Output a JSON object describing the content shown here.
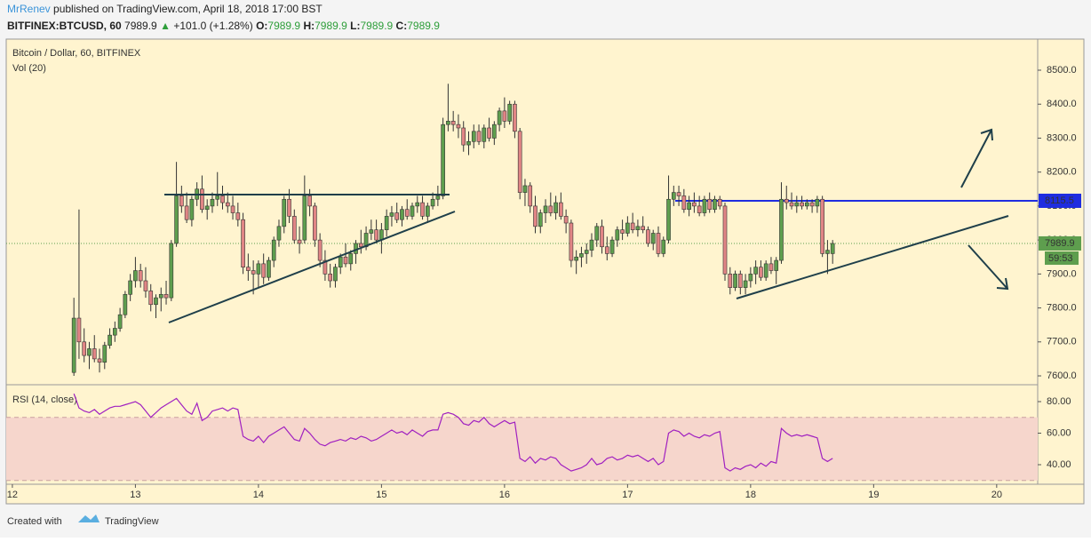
{
  "header": {
    "author": "MrRenev",
    "published": "published on TradingView.com, April 18, 2018 17:00 BST",
    "symbol": "BITFINEX:BTCUSD, 60",
    "last": "7989.9",
    "arrow": "▲",
    "change": "+101.0 (+1.28%)",
    "ohlc_labels": [
      "O:",
      "H:",
      "L:",
      "C:"
    ],
    "ohlc_values": [
      "7989.9",
      "7989.9",
      "7989.9",
      "7989.9"
    ]
  },
  "footer": {
    "created": "Created with",
    "brand": "TradingView"
  },
  "chart_data": {
    "type": "candlestick",
    "title": "Bitcoin / Dollar, 60, BITFINEX",
    "volume_label": "Vol (20)",
    "up_color": "#5e9e4e",
    "down_color": "#e08585",
    "xlim": [
      -13.2,
      188
    ],
    "xticks": [
      {
        "value": -12,
        "label": "12"
      },
      {
        "value": 12,
        "label": "13"
      },
      {
        "value": 36,
        "label": "14"
      },
      {
        "value": 60,
        "label": "15"
      },
      {
        "value": 84,
        "label": "16"
      },
      {
        "value": 108,
        "label": "17"
      },
      {
        "value": 132,
        "label": "18"
      },
      {
        "value": 156,
        "label": "19"
      },
      {
        "value": 180,
        "label": "20"
      }
    ],
    "ylim": [
      7576.5,
      8591.6
    ],
    "yticks": [
      {
        "value": 7600,
        "label": "7600.0"
      },
      {
        "value": 7700,
        "label": "7700.0"
      },
      {
        "value": 7800,
        "label": "7800.0"
      },
      {
        "value": 7900,
        "label": "7900.0"
      },
      {
        "value": 8000,
        "label": "8000.0"
      },
      {
        "value": 8100,
        "label": "8100.0"
      },
      {
        "value": 8200,
        "label": "8200.0"
      },
      {
        "value": 8300,
        "label": "8300.0"
      },
      {
        "value": 8400,
        "label": "8400.0"
      },
      {
        "value": 8500,
        "label": "8500.0"
      }
    ],
    "level_line": {
      "value": 8115.5,
      "label": "8115.5",
      "color": "#1f2de0"
    },
    "last_price": {
      "value": 7989.9,
      "label": "7989.9",
      "countdown": "59:53"
    },
    "candles": [
      [
        7610,
        7830,
        7600,
        7770
      ],
      [
        7770,
        8090,
        7650,
        7700
      ],
      [
        7700,
        7740,
        7640,
        7660
      ],
      [
        7660,
        7700,
        7620,
        7680
      ],
      [
        7680,
        7720,
        7640,
        7650
      ],
      [
        7650,
        7680,
        7610,
        7640
      ],
      [
        7640,
        7700,
        7620,
        7690
      ],
      [
        7690,
        7740,
        7680,
        7720
      ],
      [
        7720,
        7760,
        7700,
        7740
      ],
      [
        7740,
        7800,
        7730,
        7780
      ],
      [
        7780,
        7850,
        7770,
        7840
      ],
      [
        7840,
        7900,
        7820,
        7880
      ],
      [
        7880,
        7950,
        7860,
        7910
      ],
      [
        7910,
        7930,
        7860,
        7880
      ],
      [
        7880,
        7920,
        7830,
        7850
      ],
      [
        7850,
        7870,
        7790,
        7810
      ],
      [
        7810,
        7840,
        7770,
        7830
      ],
      [
        7830,
        7860,
        7790,
        7840
      ],
      [
        7840,
        7880,
        7810,
        7830
      ],
      [
        7830,
        8000,
        7820,
        7990
      ],
      [
        7990,
        8230,
        7980,
        8130
      ],
      [
        8130,
        8160,
        8080,
        8100
      ],
      [
        8100,
        8140,
        8050,
        8060
      ],
      [
        8060,
        8130,
        8040,
        8120
      ],
      [
        8120,
        8170,
        8100,
        8150
      ],
      [
        8150,
        8190,
        8080,
        8090
      ],
      [
        8090,
        8120,
        8060,
        8100
      ],
      [
        8100,
        8140,
        8080,
        8120
      ],
      [
        8120,
        8200,
        8100,
        8130
      ],
      [
        8130,
        8160,
        8090,
        8110
      ],
      [
        8110,
        8140,
        8080,
        8100
      ],
      [
        8100,
        8130,
        8060,
        8080
      ],
      [
        8080,
        8110,
        8040,
        8060
      ],
      [
        8060,
        8080,
        7900,
        7920
      ],
      [
        7920,
        7960,
        7880,
        7910
      ],
      [
        7910,
        7940,
        7840,
        7900
      ],
      [
        7900,
        7940,
        7860,
        7930
      ],
      [
        7930,
        7960,
        7870,
        7890
      ],
      [
        7890,
        7950,
        7880,
        7940
      ],
      [
        7940,
        8010,
        7920,
        8000
      ],
      [
        8000,
        8060,
        7980,
        8040
      ],
      [
        8040,
        8130,
        8020,
        8120
      ],
      [
        8120,
        8150,
        8050,
        8070
      ],
      [
        8070,
        8090,
        7990,
        8000
      ],
      [
        8000,
        8040,
        7960,
        7990
      ],
      [
        8000,
        8190,
        7990,
        8130
      ],
      [
        8130,
        8150,
        8070,
        8100
      ],
      [
        8100,
        8110,
        7980,
        8000
      ],
      [
        8000,
        8020,
        7920,
        7940
      ],
      [
        7940,
        7970,
        7880,
        7900
      ],
      [
        7900,
        7930,
        7860,
        7880
      ],
      [
        7880,
        7930,
        7860,
        7920
      ],
      [
        7920,
        7960,
        7900,
        7950
      ],
      [
        7950,
        7990,
        7920,
        7930
      ],
      [
        7930,
        7970,
        7910,
        7960
      ],
      [
        7960,
        8000,
        7930,
        7990
      ],
      [
        7990,
        8030,
        7960,
        7980
      ],
      [
        7980,
        8040,
        7970,
        8020
      ],
      [
        8020,
        8060,
        8000,
        8030
      ],
      [
        8030,
        8060,
        7990,
        8000
      ],
      [
        8000,
        8050,
        7960,
        8030
      ],
      [
        8030,
        8090,
        8010,
        8070
      ],
      [
        8070,
        8100,
        8040,
        8080
      ],
      [
        8080,
        8110,
        8050,
        8060
      ],
      [
        8060,
        8100,
        8040,
        8090
      ],
      [
        8090,
        8120,
        8060,
        8070
      ],
      [
        8070,
        8110,
        8060,
        8100
      ],
      [
        8100,
        8130,
        8080,
        8110
      ],
      [
        8110,
        8130,
        8060,
        8070
      ],
      [
        8070,
        8110,
        8050,
        8100
      ],
      [
        8100,
        8140,
        8090,
        8120
      ],
      [
        8120,
        8160,
        8100,
        8130
      ],
      [
        8130,
        8360,
        8120,
        8340
      ],
      [
        8340,
        8460,
        8320,
        8350
      ],
      [
        8350,
        8380,
        8320,
        8340
      ],
      [
        8340,
        8370,
        8300,
        8330
      ],
      [
        8330,
        8350,
        8260,
        8280
      ],
      [
        8280,
        8320,
        8250,
        8290
      ],
      [
        8290,
        8340,
        8270,
        8320
      ],
      [
        8320,
        8340,
        8280,
        8290
      ],
      [
        8290,
        8340,
        8270,
        8330
      ],
      [
        8330,
        8360,
        8290,
        8300
      ],
      [
        8300,
        8350,
        8280,
        8340
      ],
      [
        8340,
        8390,
        8320,
        8380
      ],
      [
        8380,
        8420,
        8330,
        8350
      ],
      [
        8350,
        8410,
        8340,
        8400
      ],
      [
        8400,
        8410,
        8300,
        8320
      ],
      [
        8320,
        8330,
        8120,
        8140
      ],
      [
        8140,
        8180,
        8100,
        8160
      ],
      [
        8160,
        8170,
        8080,
        8100
      ],
      [
        8100,
        8130,
        8020,
        8040
      ],
      [
        8040,
        8090,
        8020,
        8080
      ],
      [
        8080,
        8120,
        8050,
        8100
      ],
      [
        8100,
        8140,
        8070,
        8080
      ],
      [
        8080,
        8130,
        8060,
        8110
      ],
      [
        8110,
        8140,
        8060,
        8070
      ],
      [
        8070,
        8090,
        8020,
        8050
      ],
      [
        8050,
        8060,
        7920,
        7940
      ],
      [
        7940,
        7970,
        7900,
        7950
      ],
      [
        7950,
        7980,
        7920,
        7960
      ],
      [
        7960,
        7990,
        7930,
        7970
      ],
      [
        7970,
        8020,
        7950,
        8000
      ],
      [
        8000,
        8050,
        7980,
        8040
      ],
      [
        8040,
        8060,
        7960,
        7980
      ],
      [
        7980,
        8010,
        7940,
        7960
      ],
      [
        7960,
        8010,
        7950,
        8000
      ],
      [
        8000,
        8040,
        7980,
        8030
      ],
      [
        8030,
        8060,
        8000,
        8020
      ],
      [
        8020,
        8070,
        8010,
        8050
      ],
      [
        8050,
        8080,
        8020,
        8030
      ],
      [
        8030,
        8060,
        8010,
        8040
      ],
      [
        8040,
        8070,
        8020,
        8030
      ],
      [
        8030,
        8040,
        7980,
        7990
      ],
      [
        7990,
        8030,
        7970,
        8020
      ],
      [
        8020,
        8040,
        7950,
        7960
      ],
      [
        7960,
        8010,
        7950,
        8000
      ],
      [
        8000,
        8190,
        7990,
        8120
      ],
      [
        8120,
        8160,
        8100,
        8140
      ],
      [
        8140,
        8160,
        8100,
        8130
      ],
      [
        8130,
        8150,
        8080,
        8090
      ],
      [
        8090,
        8130,
        8070,
        8110
      ],
      [
        8110,
        8140,
        8080,
        8100
      ],
      [
        8100,
        8130,
        8070,
        8080
      ],
      [
        8080,
        8130,
        8070,
        8120
      ],
      [
        8120,
        8140,
        8080,
        8090
      ],
      [
        8090,
        8130,
        8080,
        8120
      ],
      [
        8120,
        8130,
        8090,
        8100
      ],
      [
        8100,
        8110,
        7880,
        7900
      ],
      [
        7900,
        7920,
        7840,
        7860
      ],
      [
        7860,
        7910,
        7850,
        7900
      ],
      [
        7900,
        7910,
        7840,
        7860
      ],
      [
        7860,
        7900,
        7840,
        7880
      ],
      [
        7880,
        7920,
        7860,
        7900
      ],
      [
        7900,
        7940,
        7870,
        7920
      ],
      [
        7920,
        7940,
        7880,
        7890
      ],
      [
        7890,
        7940,
        7880,
        7930
      ],
      [
        7930,
        7950,
        7900,
        7910
      ],
      [
        7910,
        7950,
        7870,
        7940
      ],
      [
        7940,
        8170,
        7930,
        8120
      ],
      [
        8120,
        8160,
        8090,
        8110
      ],
      [
        8110,
        8140,
        8090,
        8100
      ],
      [
        8100,
        8130,
        8080,
        8110
      ],
      [
        8110,
        8130,
        8090,
        8100
      ],
      [
        8100,
        8120,
        8090,
        8110
      ],
      [
        8110,
        8120,
        8080,
        8100
      ],
      [
        8100,
        8130,
        8080,
        8120
      ],
      [
        8120,
        8130,
        7950,
        7960
      ],
      [
        7960,
        8000,
        7900,
        7970
      ],
      [
        7960,
        8000,
        7930,
        7989.9
      ]
    ],
    "rsi": {
      "name": "RSI (14, close)",
      "color": "#a020c0",
      "band": [
        30,
        70
      ],
      "ylim": [
        27.6,
        90.7
      ],
      "yticks": [
        {
          "value": 40,
          "label": "40.00"
        },
        {
          "value": 60,
          "label": "60.00"
        },
        {
          "value": 80,
          "label": "80.00"
        }
      ],
      "values": [
        85,
        76,
        74,
        73,
        75,
        72,
        74,
        76,
        77,
        77,
        78,
        79,
        80,
        78,
        74,
        70,
        73,
        76,
        78,
        80,
        82,
        78,
        74,
        72,
        79,
        68,
        70,
        74,
        75,
        76,
        74,
        76,
        75,
        58,
        56,
        55,
        58,
        54,
        58,
        60,
        62,
        64,
        60,
        56,
        55,
        63,
        60,
        56,
        53,
        52,
        54,
        55,
        56,
        55,
        57,
        56,
        58,
        57,
        55,
        56,
        58,
        60,
        62,
        60,
        61,
        59,
        62,
        60,
        58,
        61,
        62,
        62,
        72,
        73,
        72,
        70,
        66,
        65,
        68,
        67,
        70,
        66,
        64,
        66,
        68,
        66,
        67,
        44,
        42,
        45,
        41,
        44,
        43,
        45,
        44,
        40,
        38,
        36,
        37,
        38,
        40,
        44,
        40,
        41,
        44,
        45,
        43,
        44,
        46,
        45,
        46,
        44,
        42,
        44,
        40,
        42,
        60,
        62,
        61,
        58,
        60,
        58,
        57,
        59,
        58,
        60,
        61,
        38,
        36,
        38,
        37,
        39,
        40,
        38,
        41,
        39,
        42,
        41,
        63,
        60,
        58,
        59,
        58,
        59,
        58,
        57,
        44,
        42,
        44
      ]
    }
  }
}
